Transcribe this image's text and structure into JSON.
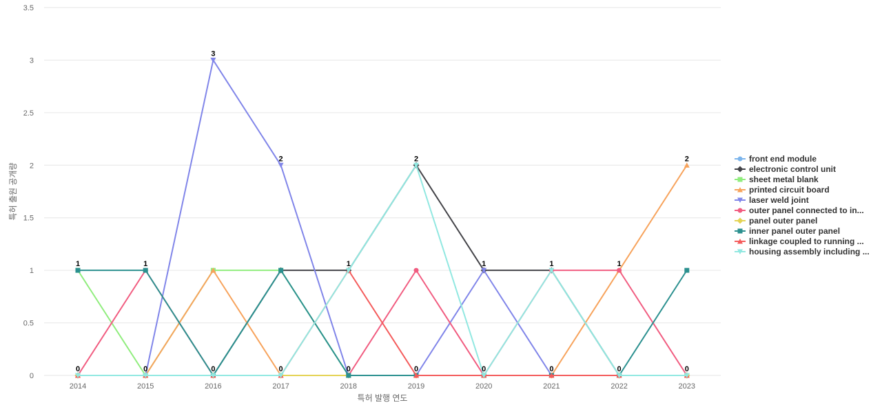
{
  "chart_data": {
    "type": "line",
    "xlabel": "특허 발행 연도",
    "ylabel": "특허 출원 공개량",
    "x": [
      "2014",
      "2015",
      "2016",
      "2017",
      "2018",
      "2019",
      "2020",
      "2021",
      "2022",
      "2023"
    ],
    "ylim": [
      0,
      3.5
    ],
    "yticks": [
      "0",
      "0.5",
      "1",
      "1.5",
      "2",
      "2.5",
      "3",
      "3.5"
    ],
    "grid": true,
    "legend_position": "right",
    "series": [
      {
        "name": "front end module",
        "color": "#7cb5ec",
        "marker": "circle",
        "values": [
          0,
          0,
          0,
          0,
          0,
          0,
          0,
          0,
          0,
          0
        ]
      },
      {
        "name": "electronic control unit",
        "color": "#434348",
        "marker": "diamond",
        "values": [
          0,
          0,
          0,
          1,
          1,
          2,
          1,
          1,
          0,
          0
        ]
      },
      {
        "name": "sheet metal blank",
        "color": "#90ed7d",
        "marker": "square",
        "values": [
          1,
          0,
          1,
          1,
          0,
          0,
          0,
          0,
          0,
          0
        ]
      },
      {
        "name": "printed circuit board",
        "color": "#f7a35c",
        "marker": "triangle",
        "values": [
          0,
          0,
          1,
          0,
          0,
          0,
          0,
          0,
          1,
          2
        ]
      },
      {
        "name": "laser weld joint",
        "color": "#8085e9",
        "marker": "triangle-down",
        "values": [
          0,
          0,
          3,
          2,
          0,
          0,
          1,
          0,
          0,
          0
        ]
      },
      {
        "name": "outer panel connected to in...",
        "color": "#f15c80",
        "marker": "circle",
        "values": [
          0,
          1,
          0,
          0,
          0,
          1,
          0,
          1,
          1,
          0
        ]
      },
      {
        "name": "panel outer panel",
        "color": "#e4d354",
        "marker": "diamond",
        "values": [
          0,
          0,
          0,
          0,
          0,
          0,
          0,
          0,
          0,
          0
        ]
      },
      {
        "name": "inner panel outer panel",
        "color": "#2b908f",
        "marker": "square",
        "values": [
          1,
          1,
          0,
          1,
          0,
          0,
          0,
          0,
          0,
          1
        ]
      },
      {
        "name": "linkage coupled to running ...",
        "color": "#f45b5b",
        "marker": "triangle",
        "values": [
          0,
          0,
          0,
          0,
          1,
          0,
          0,
          0,
          0,
          0
        ]
      },
      {
        "name": "housing assembly including ...",
        "color": "#91e8e1",
        "marker": "triangle-down",
        "values": [
          0,
          0,
          0,
          0,
          1,
          2,
          0,
          1,
          0,
          0
        ]
      }
    ],
    "data_labels": [
      {
        "x": "2014",
        "top": "1",
        "bottom": "0"
      },
      {
        "x": "2015",
        "top": "1",
        "bottom": "0"
      },
      {
        "x": "2016",
        "top": "3",
        "bottom": "0"
      },
      {
        "x": "2017",
        "top": "2",
        "bottom": "0"
      },
      {
        "x": "2018",
        "top": "1",
        "bottom": "0"
      },
      {
        "x": "2019",
        "top": "2",
        "bottom": "0"
      },
      {
        "x": "2020",
        "top": "1",
        "bottom": "0"
      },
      {
        "x": "2021",
        "top": "1",
        "bottom": "0"
      },
      {
        "x": "2022",
        "top": "1",
        "bottom": "0"
      },
      {
        "x": "2023",
        "top": "2",
        "bottom": "0"
      }
    ]
  }
}
